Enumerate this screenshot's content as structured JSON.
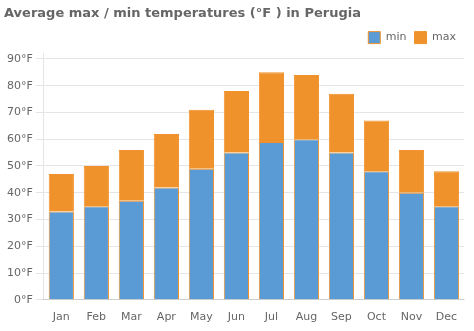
{
  "chart_data": {
    "type": "bar",
    "title": "Average max / min temperatures (°F ) in Perugia",
    "categories": [
      "Jan",
      "Feb",
      "Mar",
      "Apr",
      "May",
      "Jun",
      "Jul",
      "Aug",
      "Sep",
      "Oct",
      "Nov",
      "Dec"
    ],
    "series": [
      {
        "name": "min",
        "color": "#5b9bd5",
        "values": [
          33,
          35,
          37,
          42,
          49,
          55,
          59,
          60,
          55,
          48,
          40,
          35
        ]
      },
      {
        "name": "max",
        "color": "#f0922b",
        "values": [
          14,
          15,
          19,
          20,
          22,
          23,
          26,
          24,
          22,
          19,
          16,
          13
        ]
      }
    ],
    "stacked": true,
    "ylim": [
      0,
      92
    ],
    "yticks": [
      {
        "value": 0,
        "label": "0°F"
      },
      {
        "value": 10,
        "label": "10°F"
      },
      {
        "value": 20,
        "label": "20°F"
      },
      {
        "value": 30,
        "label": "30°F"
      },
      {
        "value": 40,
        "label": "40°F"
      },
      {
        "value": 50,
        "label": "50°F"
      },
      {
        "value": 60,
        "label": "60°F"
      },
      {
        "value": 70,
        "label": "70°F"
      },
      {
        "value": 80,
        "label": "80°F"
      },
      {
        "value": 90,
        "label": "90°F"
      }
    ],
    "grid": true,
    "legend": "top-right"
  }
}
